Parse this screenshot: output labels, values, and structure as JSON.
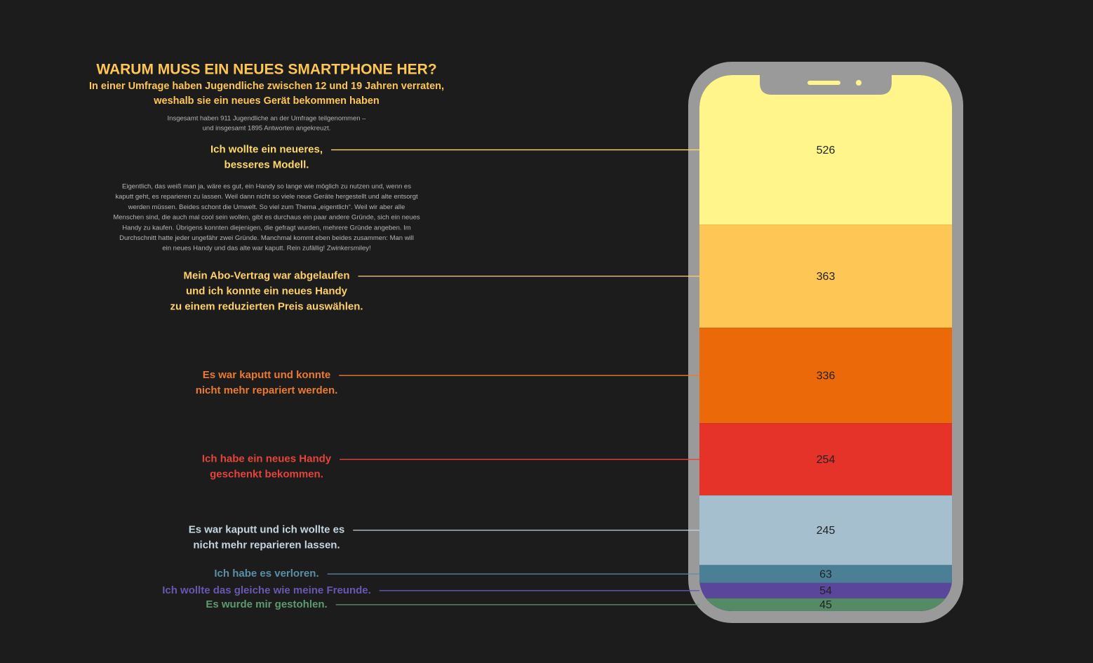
{
  "chart_data": {
    "type": "bar",
    "stacked": true,
    "title": "WARUM MUSS EIN NEUES SMARTPHONE HER?",
    "subtitle": [
      "In einer Umfrage haben Jugendliche zwischen 12 und 19 Jahren verraten,",
      "weshalb sie ein neues Gerät bekommen haben"
    ],
    "note": [
      "Insgesamt haben 911 Jugendliche an der Umfrage teilgenommen –",
      "und insgesamt 1895 Antworten angekreuzt."
    ],
    "body": [
      "Eigentlich, das weiß man ja, wäre es gut, ein Handy so lange wie möglich zu nutzen und, wenn es",
      "kaputt geht, es reparieren zu lassen. Weil dann nicht so viele neue Geräte hergestellt und alte entsorgt",
      "werden müssen. Beides schont die Umwelt. So viel zum Thema „eigentlich“. Weil wir aber alle",
      "Menschen sind, die auch mal cool sein wollen, gibt es durchaus ein paar andere Gründe, sich ein neues",
      "Handy zu kaufen. Übrigens konnten diejenigen, die gefragt wurden, mehrere Gründe angeben. Im",
      "Durchschnitt hatte jeder ungefähr zwei Gründe. Manchmal kommt eben beides zusammen: Man will",
      "ein neues Handy und das alte war kaputt. Rein zufällig! Zwinkersmiley!"
    ],
    "categories": [
      [
        "Ich wollte ein neueres,",
        "besseres Modell."
      ],
      [
        "Mein Abo-Vertrag war abgelaufen",
        "und ich konnte ein neues Handy",
        "zu einem reduzierten Preis auswählen."
      ],
      [
        "Es war kaputt und konnte",
        "nicht mehr repariert werden."
      ],
      [
        "Ich habe ein neues Handy",
        "geschenkt bekommen."
      ],
      [
        "Es war kaputt und ich wollte es",
        "nicht mehr reparieren lassen."
      ],
      [
        "Ich habe es verloren."
      ],
      [
        "Ich wollte das gleiche wie meine Freunde."
      ],
      [
        "Es wurde mir gestohlen."
      ]
    ],
    "values": [
      526,
      363,
      336,
      254,
      245,
      63,
      54,
      45
    ],
    "colors": [
      "#fff58a",
      "#fdc655",
      "#ec690a",
      "#e5332a",
      "#a6bfce",
      "#4a7f96",
      "#5a479b",
      "#548a66"
    ],
    "label_colors": [
      "#fdd86a",
      "#fdd06a",
      "#ec7a30",
      "#e5443a",
      "#c5d6e0",
      "#5b8fa6",
      "#6b57b0",
      "#5e9a70"
    ]
  }
}
